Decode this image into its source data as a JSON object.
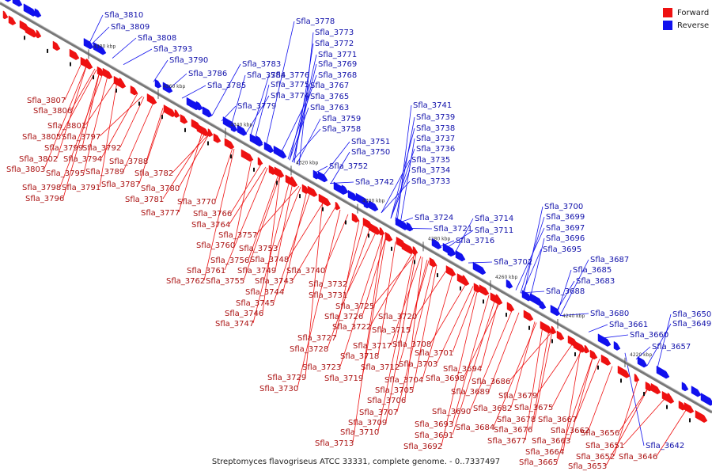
{
  "legend": {
    "forward_label": "Forward",
    "reverse_label": "Reverse",
    "forward_color": "#ee1111",
    "reverse_color": "#1111ee"
  },
  "caption": "Streptomyces flavogriseus ATCC 33331, complete genome. - 0..7337497",
  "ticks": [
    "4380 kbp",
    "4360 kbp",
    "4340 kbp",
    "4320 kbp",
    "4300 kbp",
    "4280 kbp",
    "4260 kbp",
    "4240 kbp",
    "4220 kbp"
  ],
  "reverse_labels": [
    "Sfla_3810",
    "Sfla_3809",
    "Sfla_3808",
    "Sfla_3793",
    "Sfla_3790",
    "Sfla_3786",
    "Sfla_3785",
    "Sfla_3778",
    "Sfla_3773",
    "Sfla_3772",
    "Sfla_3771",
    "Sfla_3783",
    "Sfla_3784",
    "Sfla_3776",
    "Sfla_3769",
    "Sfla_3768",
    "Sfla_3775",
    "Sfla_3767",
    "Sfla_3774",
    "Sfla_3765",
    "Sfla_3779",
    "Sfla_3763",
    "Sfla_3759",
    "Sfla_3758",
    "Sfla_3741",
    "Sfla_3739",
    "Sfla_3738",
    "Sfla_3751",
    "Sfla_3737",
    "Sfla_3750",
    "Sfla_3736",
    "Sfla_3735",
    "Sfla_3752",
    "Sfla_3734",
    "Sfla_3742",
    "Sfla_3733",
    "Sfla_3724",
    "Sfla_3714",
    "Sfla_3721",
    "Sfla_3711",
    "Sfla_3716",
    "Sfla_3700",
    "Sfla_3699",
    "Sfla_3697",
    "Sfla_3696",
    "Sfla_3695",
    "Sfla_3702",
    "Sfla_3687",
    "Sfla_3685",
    "Sfla_3683",
    "Sfla_3688",
    "Sfla_3680",
    "Sfla_3650",
    "Sfla_3661",
    "Sfla_3649",
    "Sfla_3660",
    "Sfla_3657",
    "Sfla_3642"
  ],
  "forward_labels": [
    "Sfla_3807",
    "Sfla_3806",
    "Sfla_3801",
    "Sfla_3805",
    "Sfla_3797",
    "Sfla_3799",
    "Sfla_3792",
    "Sfla_3802",
    "Sfla_3794",
    "Sfla_3803",
    "Sfla_3788",
    "Sfla_3795",
    "Sfla_3789",
    "Sfla_3782",
    "Sfla_3798",
    "Sfla_3791",
    "Sfla_3787",
    "Sfla_3780",
    "Sfla_3796",
    "Sfla_3781",
    "Sfla_3770",
    "Sfla_3777",
    "Sfla_3766",
    "Sfla_3764",
    "Sfla_3757",
    "Sfla_3760",
    "Sfla_3753",
    "Sfla_3756",
    "Sfla_3748",
    "Sfla_3761",
    "Sfla_3749",
    "Sfla_3740",
    "Sfla_3762",
    "Sfla_3755",
    "Sfla_3743",
    "Sfla_3732",
    "Sfla_3744",
    "Sfla_3731",
    "Sfla_3745",
    "Sfla_3725",
    "Sfla_3746",
    "Sfla_3726",
    "Sfla_3720",
    "Sfla_3747",
    "Sfla_3722",
    "Sfla_3715",
    "Sfla_3727",
    "Sfla_3717",
    "Sfla_3708",
    "Sfla_3728",
    "Sfla_3718",
    "Sfla_3701",
    "Sfla_3712",
    "Sfla_3703",
    "Sfla_3723",
    "Sfla_3694",
    "Sfla_3719",
    "Sfla_3704",
    "Sfla_3698",
    "Sfla_3686",
    "Sfla_3729",
    "Sfla_3705",
    "Sfla_3689",
    "Sfla_3679",
    "Sfla_3730",
    "Sfla_3706",
    "Sfla_3682",
    "Sfla_3675",
    "Sfla_3707",
    "Sfla_3690",
    "Sfla_3678",
    "Sfla_3667",
    "Sfla_3709",
    "Sfla_3693",
    "Sfla_3684",
    "Sfla_3676",
    "Sfla_3662",
    "Sfla_3656",
    "Sfla_3710",
    "Sfla_3691",
    "Sfla_3677",
    "Sfla_3663",
    "Sfla_3713",
    "Sfla_3692",
    "Sfla_3651",
    "Sfla_3664",
    "Sfla_3652",
    "Sfla_3646",
    "Sfla_3665",
    "Sfla_3653"
  ]
}
